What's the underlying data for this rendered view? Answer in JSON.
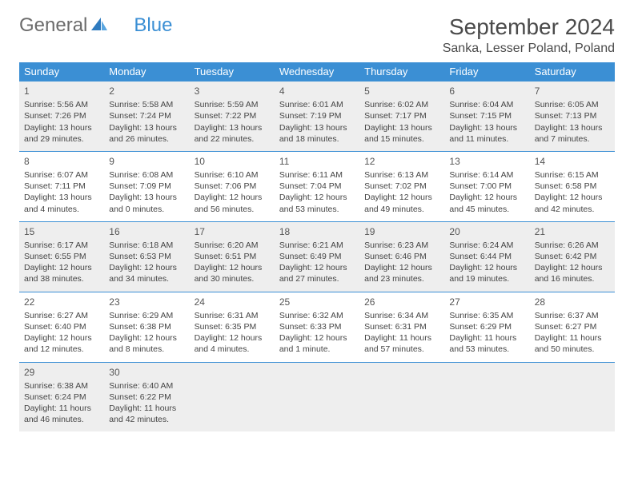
{
  "logo": {
    "text1": "General",
    "text2": "Blue"
  },
  "title": "September 2024",
  "location": "Sanka, Lesser Poland, Poland",
  "colors": {
    "header_bg": "#3b8fd4",
    "header_text": "#ffffff",
    "alt_row_bg": "#eeeeee",
    "border": "#3b8fd4",
    "text": "#444444",
    "title_text": "#4a4a4a",
    "logo_gray": "#6b6b6b",
    "logo_blue": "#3b8fd4"
  },
  "day_names": [
    "Sunday",
    "Monday",
    "Tuesday",
    "Wednesday",
    "Thursday",
    "Friday",
    "Saturday"
  ],
  "weeks": [
    [
      {
        "n": "1",
        "sr": "5:56 AM",
        "ss": "7:26 PM",
        "dl": "13 hours and 29 minutes."
      },
      {
        "n": "2",
        "sr": "5:58 AM",
        "ss": "7:24 PM",
        "dl": "13 hours and 26 minutes."
      },
      {
        "n": "3",
        "sr": "5:59 AM",
        "ss": "7:22 PM",
        "dl": "13 hours and 22 minutes."
      },
      {
        "n": "4",
        "sr": "6:01 AM",
        "ss": "7:19 PM",
        "dl": "13 hours and 18 minutes."
      },
      {
        "n": "5",
        "sr": "6:02 AM",
        "ss": "7:17 PM",
        "dl": "13 hours and 15 minutes."
      },
      {
        "n": "6",
        "sr": "6:04 AM",
        "ss": "7:15 PM",
        "dl": "13 hours and 11 minutes."
      },
      {
        "n": "7",
        "sr": "6:05 AM",
        "ss": "7:13 PM",
        "dl": "13 hours and 7 minutes."
      }
    ],
    [
      {
        "n": "8",
        "sr": "6:07 AM",
        "ss": "7:11 PM",
        "dl": "13 hours and 4 minutes."
      },
      {
        "n": "9",
        "sr": "6:08 AM",
        "ss": "7:09 PM",
        "dl": "13 hours and 0 minutes."
      },
      {
        "n": "10",
        "sr": "6:10 AM",
        "ss": "7:06 PM",
        "dl": "12 hours and 56 minutes."
      },
      {
        "n": "11",
        "sr": "6:11 AM",
        "ss": "7:04 PM",
        "dl": "12 hours and 53 minutes."
      },
      {
        "n": "12",
        "sr": "6:13 AM",
        "ss": "7:02 PM",
        "dl": "12 hours and 49 minutes."
      },
      {
        "n": "13",
        "sr": "6:14 AM",
        "ss": "7:00 PM",
        "dl": "12 hours and 45 minutes."
      },
      {
        "n": "14",
        "sr": "6:15 AM",
        "ss": "6:58 PM",
        "dl": "12 hours and 42 minutes."
      }
    ],
    [
      {
        "n": "15",
        "sr": "6:17 AM",
        "ss": "6:55 PM",
        "dl": "12 hours and 38 minutes."
      },
      {
        "n": "16",
        "sr": "6:18 AM",
        "ss": "6:53 PM",
        "dl": "12 hours and 34 minutes."
      },
      {
        "n": "17",
        "sr": "6:20 AM",
        "ss": "6:51 PM",
        "dl": "12 hours and 30 minutes."
      },
      {
        "n": "18",
        "sr": "6:21 AM",
        "ss": "6:49 PM",
        "dl": "12 hours and 27 minutes."
      },
      {
        "n": "19",
        "sr": "6:23 AM",
        "ss": "6:46 PM",
        "dl": "12 hours and 23 minutes."
      },
      {
        "n": "20",
        "sr": "6:24 AM",
        "ss": "6:44 PM",
        "dl": "12 hours and 19 minutes."
      },
      {
        "n": "21",
        "sr": "6:26 AM",
        "ss": "6:42 PM",
        "dl": "12 hours and 16 minutes."
      }
    ],
    [
      {
        "n": "22",
        "sr": "6:27 AM",
        "ss": "6:40 PM",
        "dl": "12 hours and 12 minutes."
      },
      {
        "n": "23",
        "sr": "6:29 AM",
        "ss": "6:38 PM",
        "dl": "12 hours and 8 minutes."
      },
      {
        "n": "24",
        "sr": "6:31 AM",
        "ss": "6:35 PM",
        "dl": "12 hours and 4 minutes."
      },
      {
        "n": "25",
        "sr": "6:32 AM",
        "ss": "6:33 PM",
        "dl": "12 hours and 1 minute."
      },
      {
        "n": "26",
        "sr": "6:34 AM",
        "ss": "6:31 PM",
        "dl": "11 hours and 57 minutes."
      },
      {
        "n": "27",
        "sr": "6:35 AM",
        "ss": "6:29 PM",
        "dl": "11 hours and 53 minutes."
      },
      {
        "n": "28",
        "sr": "6:37 AM",
        "ss": "6:27 PM",
        "dl": "11 hours and 50 minutes."
      }
    ],
    [
      {
        "n": "29",
        "sr": "6:38 AM",
        "ss": "6:24 PM",
        "dl": "11 hours and 46 minutes."
      },
      {
        "n": "30",
        "sr": "6:40 AM",
        "ss": "6:22 PM",
        "dl": "11 hours and 42 minutes."
      },
      null,
      null,
      null,
      null,
      null
    ]
  ],
  "labels": {
    "sunrise": "Sunrise:",
    "sunset": "Sunset:",
    "daylight": "Daylight:"
  }
}
